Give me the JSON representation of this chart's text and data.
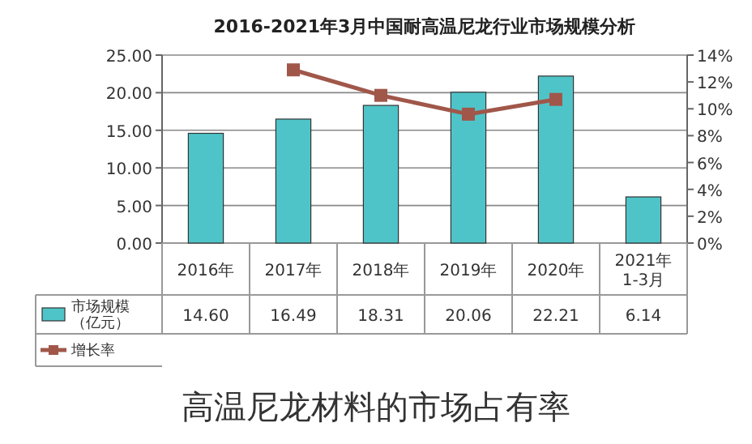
{
  "chart_data": {
    "type": "bar",
    "title": "2016-2021年3月中国耐高温尼龙行业市场规模分析",
    "categories": [
      "2016年",
      "2017年",
      "2018年",
      "2019年",
      "2020年",
      "2021年1-3月"
    ],
    "series": [
      {
        "name": "市场规模（亿元）",
        "color": "#4fc4c8",
        "values": [
          14.6,
          16.49,
          18.31,
          20.06,
          22.21,
          6.14
        ],
        "value_labels": [
          "14.60",
          "16.49",
          "18.31",
          "20.06",
          "22.21",
          "6.14"
        ]
      },
      {
        "name": "增长率",
        "type": "line",
        "axis": "y2",
        "color": "#a0574a",
        "marker": "square",
        "values": [
          null,
          12.9,
          11.0,
          9.6,
          10.7,
          null
        ]
      }
    ],
    "ylim": [
      0,
      25
    ],
    "yticks": [
      {
        "value": 0,
        "label": "0.00"
      },
      {
        "value": 5,
        "label": "5.00"
      },
      {
        "value": 10,
        "label": "10.00"
      },
      {
        "value": 15,
        "label": "15.00"
      },
      {
        "value": 20,
        "label": "20.00"
      },
      {
        "value": 25,
        "label": "25.00"
      }
    ],
    "y2lim": [
      0,
      14
    ],
    "y2ticks": [
      {
        "value": 0,
        "label": "0%"
      },
      {
        "value": 2,
        "label": "2%"
      },
      {
        "value": 4,
        "label": "4%"
      },
      {
        "value": 6,
        "label": "6%"
      },
      {
        "value": 8,
        "label": "8%"
      },
      {
        "value": 10,
        "label": "10%"
      },
      {
        "value": 12,
        "label": "12%"
      },
      {
        "value": 14,
        "label": "14%"
      }
    ],
    "grid": "y",
    "legend": "bottom left",
    "annotations": [
      "高温尼龙材料的市场占有率"
    ]
  }
}
